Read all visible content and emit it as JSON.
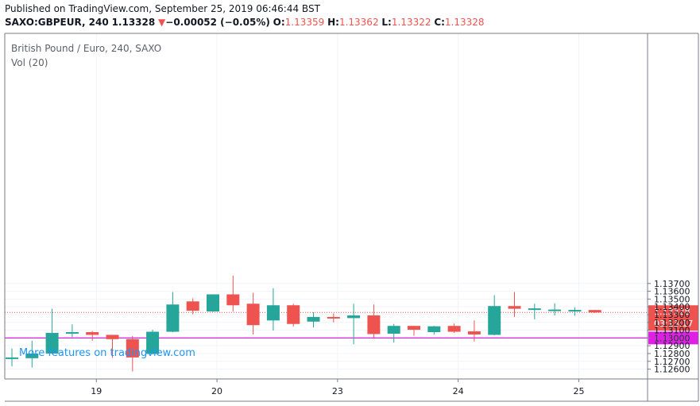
{
  "header": {
    "published": "Published on TradingView.com, September 25, 2019 06:46:44 BST",
    "symbol": "SAXO:GBPEUR, 240",
    "last": "1.13328",
    "change_arrow": "▼",
    "change": "−0.00052 (−0.05%)",
    "o_label": "O:",
    "o": "1.13359",
    "h_label": "H:",
    "h": "1.13362",
    "l_label": "L:",
    "l": "1.13322",
    "c_label": "C:",
    "c": "1.13328"
  },
  "legend": {
    "title": "British Pound / Euro, 240, SAXO",
    "vol": "Vol (20)"
  },
  "watermark": "More features on tradingview.com",
  "colors": {
    "up": "#26a69a",
    "down": "#ef5350",
    "level": "#e01fe6",
    "grid": "#f0f3fa",
    "link": "#2196f3"
  },
  "chart_data": {
    "type": "candlestick",
    "y_range": [
      1.1256,
      1.1378
    ],
    "y_ticks": [
      "1.12600",
      "1.12700",
      "1.12800",
      "1.12900",
      "1.13000",
      "1.13100",
      "1.13200",
      "1.13300",
      "1.13400",
      "1.13500",
      "1.13600",
      "1.13700"
    ],
    "x_ticks": [
      "19",
      "20",
      "23",
      "24",
      "25"
    ],
    "last_price": {
      "label": "1.13328",
      "value": 1.13328,
      "countdown": "03:13:17"
    },
    "level_line": {
      "label": "1.13000",
      "value": 1.13
    },
    "candles": [
      {
        "o": 1.12745,
        "h": 1.12865,
        "l": 1.12635,
        "c": 1.1275
      },
      {
        "o": 1.1274,
        "h": 1.12965,
        "l": 1.1262,
        "c": 1.128
      },
      {
        "o": 1.128,
        "h": 1.13375,
        "l": 1.12795,
        "c": 1.13065
      },
      {
        "o": 1.1307,
        "h": 1.13175,
        "l": 1.1301,
        "c": 1.13075
      },
      {
        "o": 1.13075,
        "h": 1.1309,
        "l": 1.12965,
        "c": 1.1304
      },
      {
        "o": 1.1304,
        "h": 1.1304,
        "l": 1.12745,
        "c": 1.12985
      },
      {
        "o": 1.12985,
        "h": 1.13025,
        "l": 1.1257,
        "c": 1.1275
      },
      {
        "o": 1.12795,
        "h": 1.13105,
        "l": 1.1279,
        "c": 1.1308
      },
      {
        "o": 1.1308,
        "h": 1.1359,
        "l": 1.13075,
        "c": 1.1343
      },
      {
        "o": 1.1347,
        "h": 1.1351,
        "l": 1.13305,
        "c": 1.1335
      },
      {
        "o": 1.1334,
        "h": 1.1356,
        "l": 1.13335,
        "c": 1.1356
      },
      {
        "o": 1.1356,
        "h": 1.138,
        "l": 1.1334,
        "c": 1.1342
      },
      {
        "o": 1.1344,
        "h": 1.1358,
        "l": 1.13045,
        "c": 1.13165
      },
      {
        "o": 1.13225,
        "h": 1.1364,
        "l": 1.13095,
        "c": 1.1342
      },
      {
        "o": 1.1342,
        "h": 1.1344,
        "l": 1.13145,
        "c": 1.1318
      },
      {
        "o": 1.1321,
        "h": 1.1333,
        "l": 1.13135,
        "c": 1.1327
      },
      {
        "o": 1.1327,
        "h": 1.13315,
        "l": 1.132,
        "c": 1.13255
      },
      {
        "o": 1.13255,
        "h": 1.1344,
        "l": 1.1292,
        "c": 1.1329
      },
      {
        "o": 1.1329,
        "h": 1.1343,
        "l": 1.1299,
        "c": 1.1305
      },
      {
        "o": 1.13055,
        "h": 1.1318,
        "l": 1.1294,
        "c": 1.13155
      },
      {
        "o": 1.13155,
        "h": 1.13155,
        "l": 1.1303,
        "c": 1.13105
      },
      {
        "o": 1.13075,
        "h": 1.13155,
        "l": 1.13045,
        "c": 1.1315
      },
      {
        "o": 1.13155,
        "h": 1.13185,
        "l": 1.13065,
        "c": 1.1308
      },
      {
        "o": 1.13085,
        "h": 1.13225,
        "l": 1.12955,
        "c": 1.13045
      },
      {
        "o": 1.1304,
        "h": 1.1355,
        "l": 1.13035,
        "c": 1.1341
      },
      {
        "o": 1.1341,
        "h": 1.1359,
        "l": 1.1327,
        "c": 1.13375
      },
      {
        "o": 1.13375,
        "h": 1.1344,
        "l": 1.1324,
        "c": 1.1338
      },
      {
        "o": 1.1335,
        "h": 1.13445,
        "l": 1.1329,
        "c": 1.13365
      },
      {
        "o": 1.1336,
        "h": 1.13395,
        "l": 1.13285,
        "c": 1.1336
      },
      {
        "o": 1.13359,
        "h": 1.13362,
        "l": 1.13322,
        "c": 1.13328
      }
    ]
  }
}
